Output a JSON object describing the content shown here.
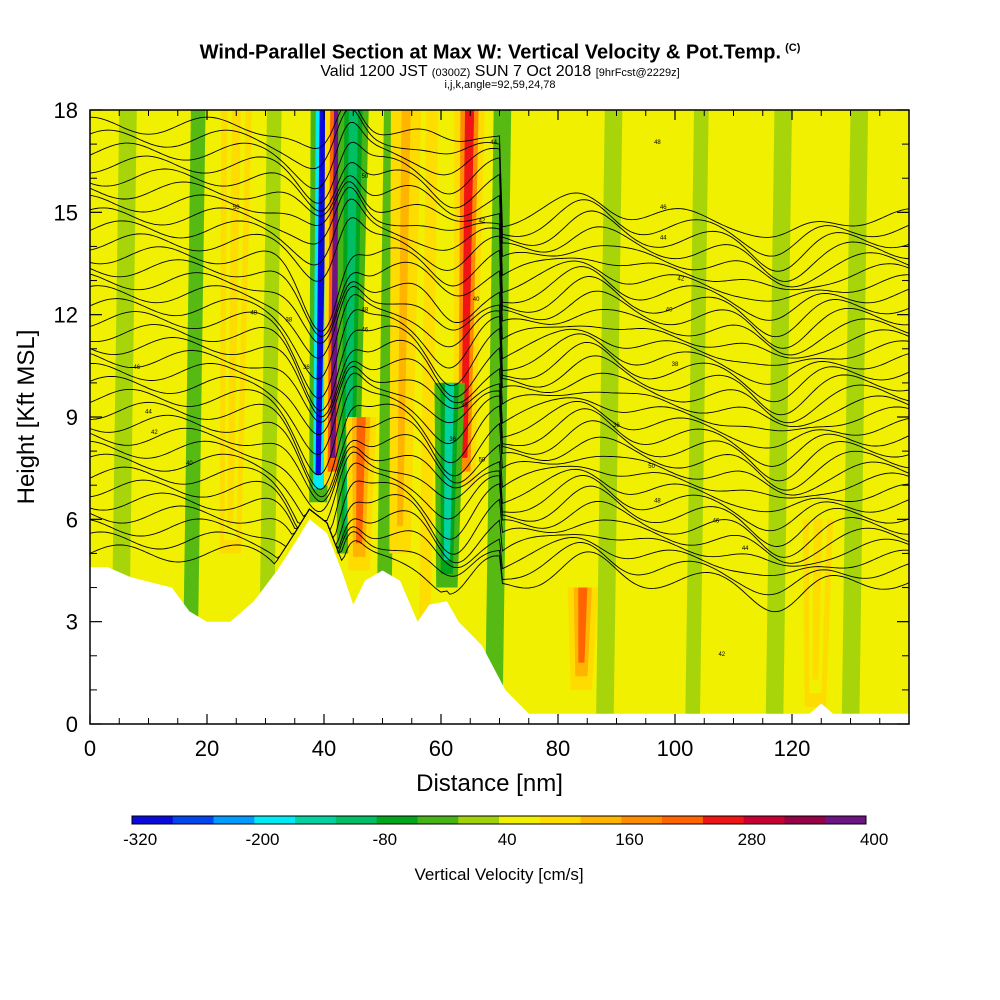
{
  "header": {
    "title": "Wind-Parallel Section at Max W: Vertical Velocity & Pot.Temp.",
    "copyright": "(C)",
    "valid_a": "Valid 1200 JST",
    "valid_utc": "(0300Z)",
    "valid_b": "SUN 7 Oct 2018",
    "forecast": "[9hrFcst@2229z]",
    "indices": "i,j,k,angle=92,59,24,78"
  },
  "chart_data": {
    "type": "heatmap",
    "title": "Wind-Parallel Section at Max W: Vertical Velocity & Pot.Temp.",
    "xlabel": "Distance [nm]",
    "ylabel": "Height [Kft MSL]",
    "xlim": [
      0,
      140
    ],
    "ylim": [
      0,
      18
    ],
    "x_ticks": [
      0,
      20,
      40,
      60,
      80,
      100,
      120
    ],
    "y_ticks": [
      0,
      3,
      6,
      9,
      12,
      15,
      18
    ],
    "colorbar": {
      "title": "Vertical Velocity [cm/s]",
      "tick_labels": [
        "-320",
        "-200",
        "-80",
        "40",
        "160",
        "280",
        "400"
      ],
      "colors": [
        "#0a0adc",
        "#0046f0",
        "#009bff",
        "#00ebf5",
        "#00d2a0",
        "#00be64",
        "#00a51e",
        "#46b414",
        "#a0d20a",
        "#f0f000",
        "#ffdc00",
        "#ffb400",
        "#ff8c00",
        "#ff6400",
        "#f01414",
        "#c80032",
        "#960046",
        "#6e1482"
      ]
    },
    "vertical_velocity_features": [
      {
        "x": 39,
        "ytop": 18,
        "ybot": 6.5,
        "w": -350,
        "desc": "strong downdraft core"
      },
      {
        "x": 41.5,
        "ytop": 18,
        "ybot": 7,
        "w": 320,
        "desc": "strong updraft core"
      },
      {
        "x": 44,
        "ytop": 18,
        "ybot": 5,
        "w": -150
      },
      {
        "x": 46,
        "ytop": 9,
        "ybot": 4.5,
        "w": 180
      },
      {
        "x": 24,
        "ytop": 18,
        "ybot": 5,
        "w": 60
      },
      {
        "x": 53,
        "ytop": 18,
        "ybot": 5,
        "w": 80
      },
      {
        "x": 64,
        "ytop": 18,
        "ybot": 7,
        "w": 200
      },
      {
        "x": 61,
        "ytop": 10,
        "ybot": 4,
        "w": -200
      },
      {
        "x": 84,
        "ytop": 4,
        "ybot": 1,
        "w": 160
      },
      {
        "x": 124,
        "ytop": 6,
        "ybot": 0.5,
        "w": 50
      }
    ],
    "terrain_height_kft": [
      [
        0,
        4.6
      ],
      [
        3,
        4.6
      ],
      [
        7,
        4.3
      ],
      [
        14,
        4.0
      ],
      [
        17,
        3.3
      ],
      [
        20,
        3.0
      ],
      [
        24,
        3.0
      ],
      [
        28,
        3.6
      ],
      [
        32,
        4.5
      ],
      [
        35,
        5.3
      ],
      [
        37.5,
        6.0
      ],
      [
        40.5,
        5.6
      ],
      [
        43,
        4.5
      ],
      [
        45,
        3.5
      ],
      [
        47,
        4.2
      ],
      [
        50,
        4.5
      ],
      [
        53,
        4.2
      ],
      [
        56,
        3.0
      ],
      [
        58,
        3.5
      ],
      [
        61,
        3.6
      ],
      [
        63,
        3.0
      ],
      [
        67,
        2.3
      ],
      [
        71,
        1.0
      ],
      [
        75,
        0.3
      ],
      [
        123,
        0.3
      ],
      [
        125,
        0.6
      ],
      [
        127,
        0.3
      ],
      [
        140,
        0.3
      ]
    ],
    "theta_contour_labels": [
      "50",
      "48",
      "46",
      "44",
      "42",
      "40",
      "38",
      "36"
    ]
  }
}
